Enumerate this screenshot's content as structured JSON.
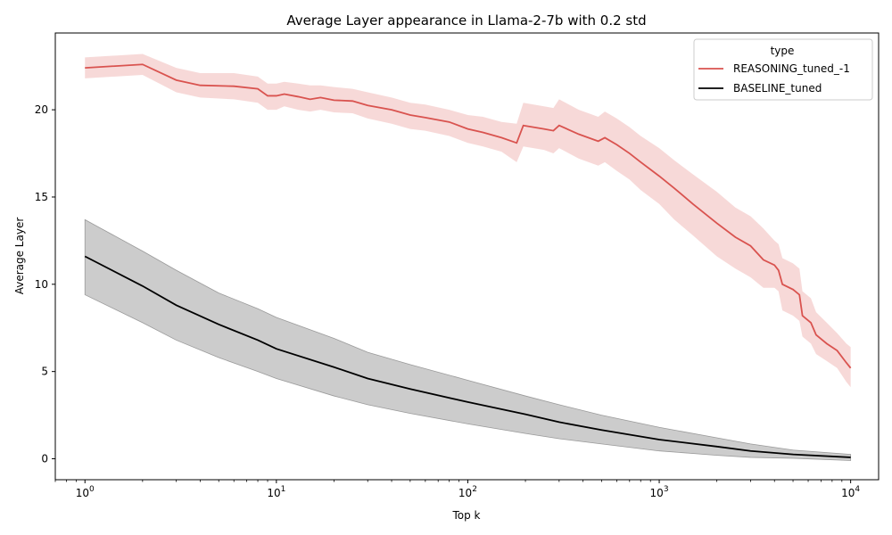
{
  "chart_data": {
    "type": "line",
    "title": "Average Layer appearance in Llama-2-7b with 0.2 std",
    "xlabel": "Top k",
    "ylabel": "Average Layer",
    "xscale": "log",
    "xlim": [
      0.7,
      14000
    ],
    "ylim": [
      -1.2,
      24.4
    ],
    "xticks": [
      {
        "value": 1,
        "base": "10",
        "exp": "0"
      },
      {
        "value": 10,
        "base": "10",
        "exp": "1"
      },
      {
        "value": 100,
        "base": "10",
        "exp": "2"
      },
      {
        "value": 1000,
        "base": "10",
        "exp": "3"
      },
      {
        "value": 10000,
        "base": "10",
        "exp": "4"
      }
    ],
    "yticks": [
      {
        "value": 0,
        "label": "0"
      },
      {
        "value": 5,
        "label": "5"
      },
      {
        "value": 10,
        "label": "10"
      },
      {
        "value": 15,
        "label": "15"
      },
      {
        "value": 20,
        "label": "20"
      }
    ],
    "grid": false,
    "legend": {
      "title": "type",
      "position": "top-right"
    },
    "series": [
      {
        "name": "REASONING_tuned_-1",
        "color": "#d9534f",
        "band_color": "#f3c9c7",
        "points": [
          [
            1,
            22.4,
            21.8,
            23.0
          ],
          [
            2,
            22.6,
            22.0,
            23.2
          ],
          [
            3,
            21.7,
            21.0,
            22.4
          ],
          [
            4,
            21.4,
            20.7,
            22.1
          ],
          [
            6,
            21.35,
            20.6,
            22.1
          ],
          [
            8,
            21.2,
            20.4,
            21.9
          ],
          [
            9,
            20.8,
            20.0,
            21.5
          ],
          [
            10,
            20.8,
            20.0,
            21.5
          ],
          [
            11,
            20.9,
            20.2,
            21.6
          ],
          [
            13,
            20.75,
            20.0,
            21.5
          ],
          [
            15,
            20.6,
            19.9,
            21.4
          ],
          [
            17,
            20.7,
            20.0,
            21.4
          ],
          [
            20,
            20.55,
            19.85,
            21.3
          ],
          [
            25,
            20.5,
            19.8,
            21.2
          ],
          [
            30,
            20.25,
            19.5,
            21.0
          ],
          [
            40,
            20.0,
            19.2,
            20.7
          ],
          [
            50,
            19.7,
            18.9,
            20.4
          ],
          [
            60,
            19.55,
            18.8,
            20.3
          ],
          [
            80,
            19.3,
            18.5,
            20.0
          ],
          [
            100,
            18.9,
            18.1,
            19.7
          ],
          [
            120,
            18.7,
            17.9,
            19.6
          ],
          [
            150,
            18.4,
            17.6,
            19.3
          ],
          [
            180,
            18.1,
            17.0,
            19.2
          ],
          [
            195,
            19.1,
            17.9,
            20.4
          ],
          [
            250,
            18.9,
            17.7,
            20.2
          ],
          [
            280,
            18.8,
            17.5,
            20.1
          ],
          [
            300,
            19.1,
            17.8,
            20.6
          ],
          [
            380,
            18.6,
            17.2,
            20.0
          ],
          [
            480,
            18.2,
            16.8,
            19.6
          ],
          [
            520,
            18.4,
            17.0,
            19.9
          ],
          [
            600,
            18.0,
            16.5,
            19.5
          ],
          [
            700,
            17.5,
            16.0,
            19.0
          ],
          [
            800,
            17.0,
            15.4,
            18.5
          ],
          [
            1000,
            16.2,
            14.6,
            17.8
          ],
          [
            1200,
            15.5,
            13.7,
            17.1
          ],
          [
            1500,
            14.6,
            12.8,
            16.3
          ],
          [
            2000,
            13.5,
            11.6,
            15.3
          ],
          [
            2500,
            12.7,
            10.9,
            14.4
          ],
          [
            3000,
            12.2,
            10.4,
            13.9
          ],
          [
            3500,
            11.4,
            9.8,
            13.2
          ],
          [
            4000,
            11.1,
            9.8,
            12.5
          ],
          [
            4200,
            10.8,
            9.6,
            12.3
          ],
          [
            4400,
            10.0,
            8.5,
            11.5
          ],
          [
            5000,
            9.7,
            8.2,
            11.2
          ],
          [
            5400,
            9.4,
            7.9,
            10.9
          ],
          [
            5600,
            8.2,
            7.0,
            9.6
          ],
          [
            6200,
            7.8,
            6.6,
            9.2
          ],
          [
            6600,
            7.1,
            6.0,
            8.4
          ],
          [
            7500,
            6.6,
            5.6,
            7.8
          ],
          [
            8500,
            6.2,
            5.2,
            7.2
          ],
          [
            9500,
            5.5,
            4.4,
            6.6
          ],
          [
            10000,
            5.2,
            4.1,
            6.4
          ]
        ]
      },
      {
        "name": "BASELINE_tuned",
        "color": "#000000",
        "band_color": "#cccccc",
        "points": [
          [
            1,
            11.6,
            9.4,
            13.7
          ],
          [
            2,
            9.9,
            7.8,
            11.9
          ],
          [
            3,
            8.8,
            6.8,
            10.8
          ],
          [
            5,
            7.7,
            5.8,
            9.5
          ],
          [
            8,
            6.8,
            5.0,
            8.6
          ],
          [
            10,
            6.3,
            4.6,
            8.1
          ],
          [
            20,
            5.25,
            3.6,
            6.9
          ],
          [
            30,
            4.6,
            3.1,
            6.1
          ],
          [
            50,
            4.0,
            2.6,
            5.4
          ],
          [
            100,
            3.25,
            2.0,
            4.5
          ],
          [
            200,
            2.55,
            1.45,
            3.6
          ],
          [
            300,
            2.1,
            1.15,
            3.1
          ],
          [
            500,
            1.65,
            0.85,
            2.5
          ],
          [
            1000,
            1.1,
            0.45,
            1.8
          ],
          [
            2000,
            0.7,
            0.2,
            1.2
          ],
          [
            3000,
            0.45,
            0.08,
            0.85
          ],
          [
            5000,
            0.25,
            0.03,
            0.5
          ],
          [
            10000,
            0.08,
            -0.1,
            0.25
          ]
        ]
      }
    ]
  }
}
